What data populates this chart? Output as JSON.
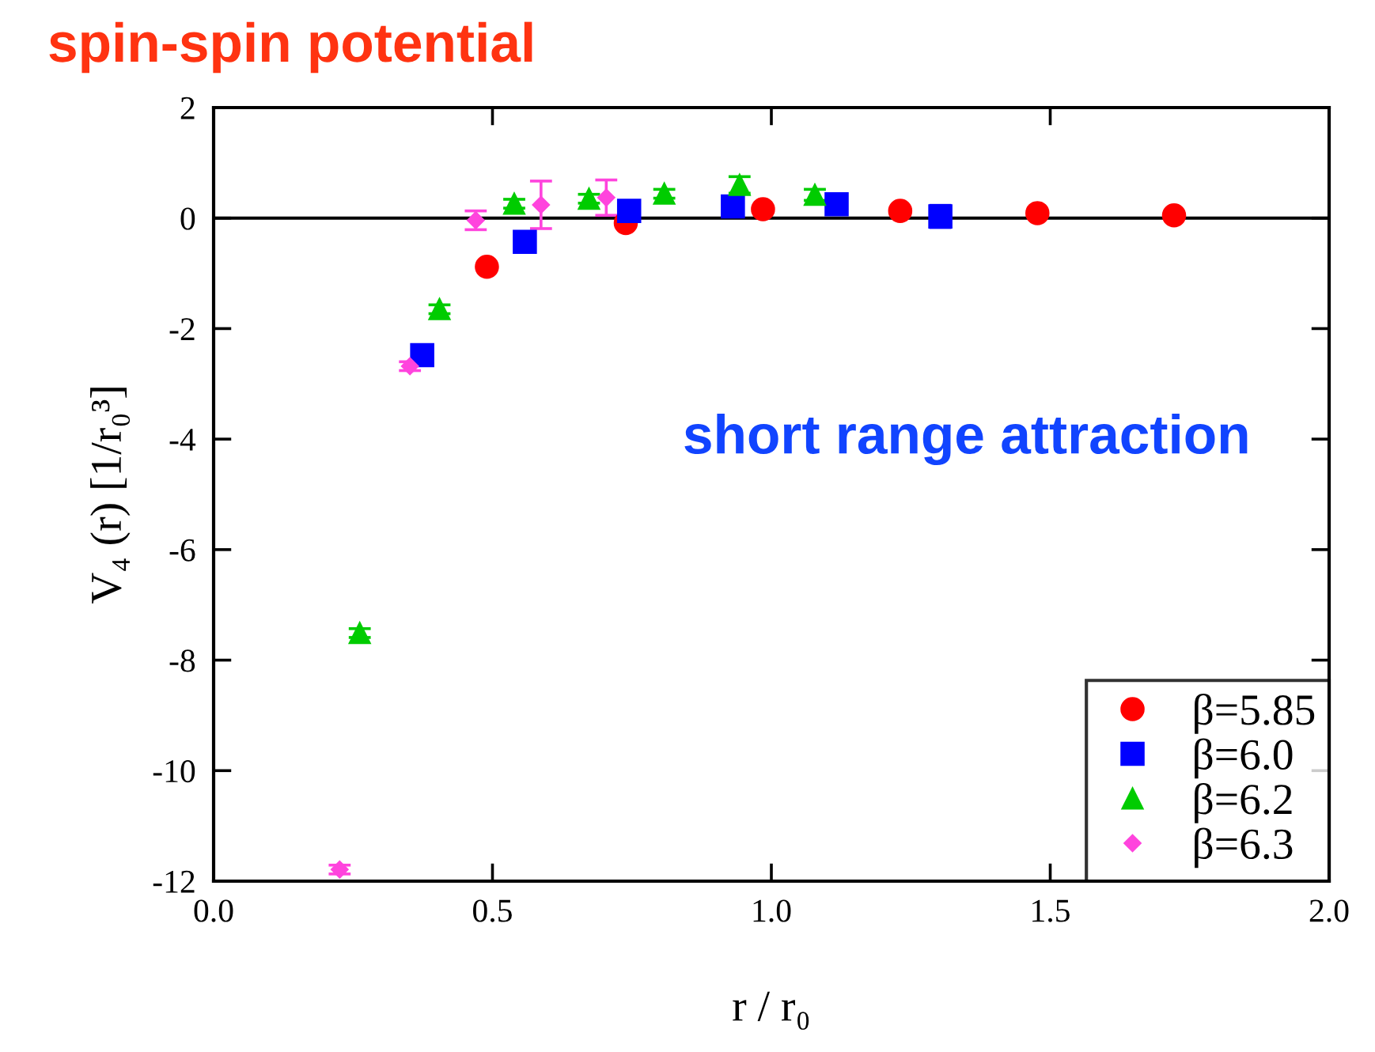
{
  "chart_data": {
    "type": "scatter",
    "title": "spin-spin potential",
    "xlabel": "r / r₀",
    "ylabel": "V₄ (r) [1/r₀³]",
    "annotations": [
      "short range attraction"
    ],
    "xlim": [
      0.0,
      2.0
    ],
    "xticks": [
      {
        "value": 0,
        "label": "0.0"
      },
      {
        "value": 0.5,
        "label": "0.5"
      },
      {
        "value": 1,
        "label": "1.0"
      },
      {
        "value": 1.5,
        "label": "1.5"
      },
      {
        "value": 2,
        "label": "2.0"
      }
    ],
    "ylim": [
      -12,
      2
    ],
    "yticks": [
      -12,
      -10,
      -8,
      -6,
      -4,
      -2,
      0,
      2
    ],
    "ref_lines": [
      {
        "axis": "y",
        "value": 0,
        "color": "#000000"
      }
    ],
    "grid": false,
    "legend": "bottom right",
    "series": [
      {
        "name": "β=5.85",
        "color": "#ff0000",
        "marker": "circle",
        "x": [
          0.49,
          0.739,
          0.985,
          1.231,
          1.477,
          1.722
        ],
        "values": [
          -0.88,
          -0.09,
          0.16,
          0.13,
          0.09,
          0.05
        ],
        "errors": [
          0.05,
          0.05,
          0.05,
          0.05,
          0.05,
          0.05
        ]
      },
      {
        "name": "β=6.0",
        "color": "#0000ff",
        "marker": "square",
        "x": [
          0.374,
          0.558,
          0.745,
          0.931,
          1.117,
          1.303
        ],
        "values": [
          -2.48,
          -0.43,
          0.13,
          0.21,
          0.25,
          0.03
        ],
        "errors": [
          0.05,
          0.05,
          0.05,
          0.05,
          0.05,
          0.2
        ]
      },
      {
        "name": "β=6.2",
        "color": "#00cc00",
        "marker": "triangle",
        "x": [
          0.262,
          0.405,
          0.539,
          0.673,
          0.808,
          0.943,
          1.078
        ],
        "values": [
          -7.51,
          -1.65,
          0.26,
          0.35,
          0.44,
          0.6,
          0.42
        ],
        "errors": [
          0.08,
          0.08,
          0.08,
          0.08,
          0.08,
          0.15,
          0.1
        ]
      },
      {
        "name": "β=6.3",
        "color": "#ff44dd",
        "marker": "diamond",
        "x": [
          0.226,
          0.352,
          0.47,
          0.587,
          0.704
        ],
        "values": [
          -11.79,
          -2.68,
          -0.04,
          0.24,
          0.37
        ],
        "errors": [
          0.08,
          0.08,
          0.17,
          0.43,
          0.32
        ]
      }
    ]
  }
}
